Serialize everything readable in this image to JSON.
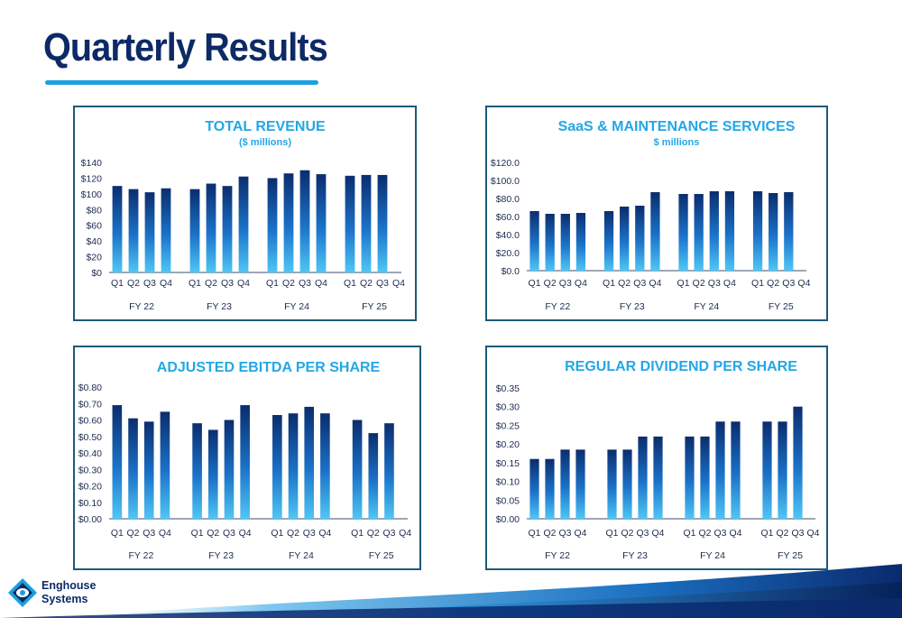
{
  "header": {
    "title": "Quarterly Results"
  },
  "logo": {
    "line1": "Enghouse",
    "line2": "Systems",
    "icon": "enghouse-logo-icon"
  },
  "colors": {
    "title": "#0d2a66",
    "accent": "#1ca0e0",
    "bar_top": "#0b2d6e",
    "bar_bottom": "#4fc6f5",
    "panel_border": "#1f5a78"
  },
  "chart_data": [
    {
      "type": "bar",
      "title": "TOTAL REVENUE",
      "subtitle": "($ millions)",
      "groups": [
        "FY 22",
        "FY 23",
        "FY 24",
        "FY 25"
      ],
      "quarters": [
        "Q1",
        "Q2",
        "Q3",
        "Q4"
      ],
      "values": [
        [
          110,
          106,
          102,
          107
        ],
        [
          106,
          113,
          110,
          122
        ],
        [
          120,
          126,
          130,
          125
        ],
        [
          123,
          124,
          124,
          null
        ]
      ],
      "ylim": [
        0,
        140
      ],
      "yticks": [
        "$0",
        "$20",
        "$40",
        "$60",
        "$80",
        "$100",
        "$120",
        "$140"
      ],
      "ytick_values": [
        0,
        20,
        40,
        60,
        80,
        100,
        120,
        140
      ]
    },
    {
      "type": "bar",
      "title": "SaaS & MAINTENANCE SERVICES",
      "subtitle": "$ millions",
      "groups": [
        "FY 22",
        "FY 23",
        "FY 24",
        "FY 25"
      ],
      "quarters": [
        "Q1",
        "Q2",
        "Q3",
        "Q4"
      ],
      "values": [
        [
          66,
          63,
          63,
          64
        ],
        [
          66,
          71,
          72,
          87
        ],
        [
          85,
          85,
          88,
          88
        ],
        [
          88,
          86,
          87,
          null
        ]
      ],
      "ylim": [
        0,
        120
      ],
      "yticks": [
        "$0.0",
        "$20.0",
        "$40.0",
        "$60.0",
        "$80.0",
        "$100.0",
        "$120.0"
      ],
      "ytick_values": [
        0,
        20,
        40,
        60,
        80,
        100,
        120
      ]
    },
    {
      "type": "bar",
      "title": "ADJUSTED EBITDA PER SHARE",
      "subtitle": "",
      "groups": [
        "FY 22",
        "FY 23",
        "FY 24",
        "FY 25"
      ],
      "quarters": [
        "Q1",
        "Q2",
        "Q3",
        "Q4"
      ],
      "values": [
        [
          0.69,
          0.61,
          0.59,
          0.65
        ],
        [
          0.58,
          0.54,
          0.6,
          0.69
        ],
        [
          0.63,
          0.64,
          0.68,
          0.64
        ],
        [
          0.6,
          0.52,
          0.58,
          null
        ]
      ],
      "ylim": [
        0,
        0.8
      ],
      "yticks": [
        "$0.00",
        "$0.10",
        "$0.20",
        "$0.30",
        "$0.40",
        "$0.50",
        "$0.60",
        "$0.70",
        "$0.80"
      ],
      "ytick_values": [
        0,
        0.1,
        0.2,
        0.3,
        0.4,
        0.5,
        0.6,
        0.7,
        0.8
      ]
    },
    {
      "type": "bar",
      "title": "REGULAR DIVIDEND PER SHARE",
      "subtitle": "",
      "groups": [
        "FY 22",
        "FY 23",
        "FY 24",
        "FY 25"
      ],
      "quarters": [
        "Q1",
        "Q2",
        "Q3",
        "Q4"
      ],
      "values": [
        [
          0.16,
          0.16,
          0.185,
          0.185
        ],
        [
          0.185,
          0.185,
          0.22,
          0.22
        ],
        [
          0.22,
          0.22,
          0.26,
          0.26
        ],
        [
          0.26,
          0.26,
          0.3,
          null
        ]
      ],
      "ylim": [
        0,
        0.35
      ],
      "yticks": [
        "$0.00",
        "$0.05",
        "$0.10",
        "$0.15",
        "$0.20",
        "$0.25",
        "$0.30",
        "$0.35"
      ],
      "ytick_values": [
        0,
        0.05,
        0.1,
        0.15,
        0.2,
        0.25,
        0.3,
        0.35
      ]
    }
  ]
}
